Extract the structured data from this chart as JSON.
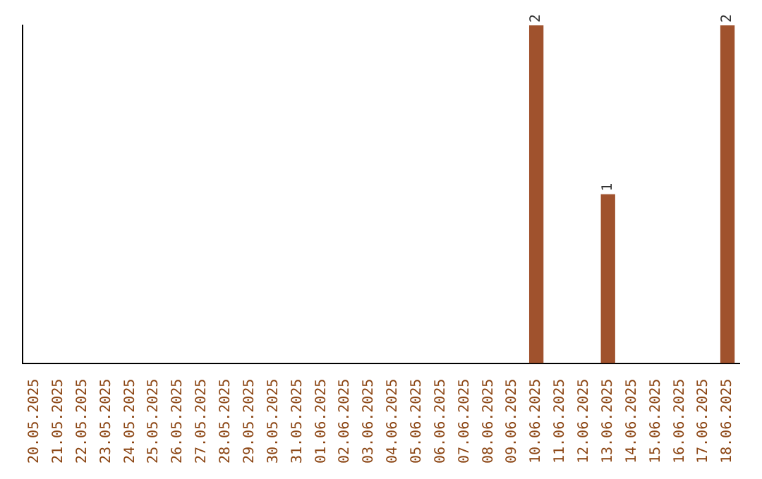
{
  "chart_data": {
    "type": "bar",
    "categories": [
      "20.05.2025",
      "21.05.2025",
      "22.05.2025",
      "23.05.2025",
      "24.05.2025",
      "25.05.2025",
      "26.05.2025",
      "27.05.2025",
      "28.05.2025",
      "29.05.2025",
      "30.05.2025",
      "31.05.2025",
      "01.06.2025",
      "02.06.2025",
      "03.06.2025",
      "04.06.2025",
      "05.06.2025",
      "06.06.2025",
      "07.06.2025",
      "08.06.2025",
      "09.06.2025",
      "10.06.2025",
      "11.06.2025",
      "12.06.2025",
      "13.06.2025",
      "14.06.2025",
      "15.06.2025",
      "16.06.2025",
      "17.06.2025",
      "18.06.2025"
    ],
    "values": [
      null,
      null,
      null,
      null,
      null,
      null,
      null,
      null,
      null,
      null,
      null,
      null,
      null,
      null,
      null,
      null,
      null,
      null,
      null,
      null,
      null,
      2,
      null,
      null,
      1,
      null,
      null,
      null,
      null,
      2
    ],
    "value_labels": [
      null,
      null,
      null,
      null,
      null,
      null,
      null,
      null,
      null,
      null,
      null,
      null,
      null,
      null,
      null,
      null,
      null,
      null,
      null,
      null,
      null,
      "2",
      null,
      null,
      "1",
      null,
      null,
      null,
      null,
      "2"
    ],
    "color": "#a0522d",
    "grid": false,
    "legend": false,
    "tick_labels": "x"
  }
}
